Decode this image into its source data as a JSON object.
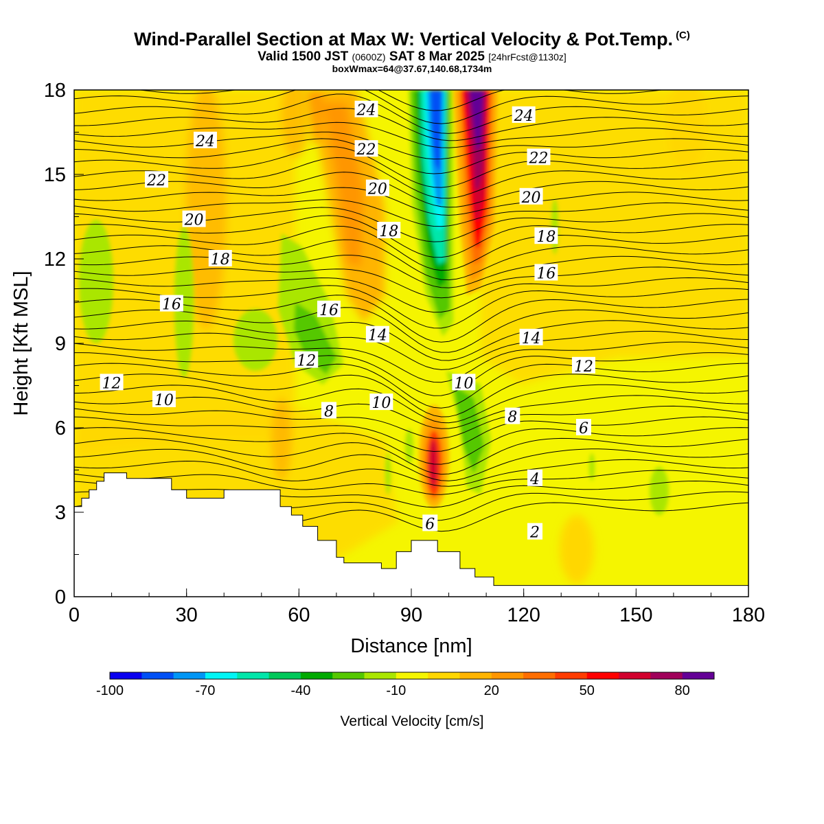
{
  "title": "Wind-Parallel Section at Max W: Vertical Velocity & Pot.Temp.",
  "title_mark": "(C)",
  "subtitle_a": "Valid 1500 JST",
  "subtitle_b": "(0600Z)",
  "subtitle_c": "SAT 8 Mar 2025",
  "subtitle_d": "[24hrFcst@1130z]",
  "subtitle2": "boxWmax=64@37.67,140.68,1734m",
  "chart_data": {
    "type": "heatmap",
    "title": "Wind-Parallel Section at Max W: Vertical Velocity & Pot.Temp.",
    "xlabel": "Distance [nm]",
    "ylabel": "Height [Kft MSL]",
    "xlim": [
      0,
      180
    ],
    "ylim": [
      0,
      18
    ],
    "xticks": [
      "0",
      "30",
      "60",
      "90",
      "120",
      "150",
      "180"
    ],
    "yticks": [
      "0",
      "3",
      "6",
      "9",
      "12",
      "15",
      "18"
    ],
    "colorbar": {
      "label": "Vertical Velocity [cm/s]",
      "tick_labels": [
        "-100",
        "-70",
        "-40",
        "-10",
        "20",
        "50",
        "80"
      ],
      "colors": [
        "#0a00f0",
        "#0050f5",
        "#0096f5",
        "#00f5f5",
        "#00e6aa",
        "#00c85a",
        "#00aa00",
        "#55c800",
        "#aae600",
        "#f5f500",
        "#ffd700",
        "#ffb400",
        "#ff9600",
        "#ff6e00",
        "#ff3c00",
        "#ff0000",
        "#d2002d",
        "#a0005a",
        "#640096"
      ]
    },
    "terrain_kft": [
      [
        0,
        3.2
      ],
      [
        2,
        3.2
      ],
      [
        2,
        3.5
      ],
      [
        4,
        3.5
      ],
      [
        4,
        3.8
      ],
      [
        6,
        3.8
      ],
      [
        6,
        4.1
      ],
      [
        8,
        4.1
      ],
      [
        8,
        4.4
      ],
      [
        14,
        4.4
      ],
      [
        14,
        4.2
      ],
      [
        26,
        4.2
      ],
      [
        26,
        3.8
      ],
      [
        30,
        3.8
      ],
      [
        30,
        3.5
      ],
      [
        40,
        3.5
      ],
      [
        40,
        3.8
      ],
      [
        55,
        3.8
      ],
      [
        55,
        3.2
      ],
      [
        58,
        3.2
      ],
      [
        58,
        2.9
      ],
      [
        61,
        2.9
      ],
      [
        61,
        2.5
      ],
      [
        65,
        2.5
      ],
      [
        65,
        2.0
      ],
      [
        70,
        2.0
      ],
      [
        70,
        1.4
      ],
      [
        72,
        1.4
      ],
      [
        72,
        1.2
      ],
      [
        82,
        1.2
      ],
      [
        82,
        1.0
      ],
      [
        86,
        1.0
      ],
      [
        86,
        1.6
      ],
      [
        90,
        1.6
      ],
      [
        90,
        2.0
      ],
      [
        97,
        2.0
      ],
      [
        97,
        1.6
      ],
      [
        103,
        1.6
      ],
      [
        103,
        1.0
      ],
      [
        107,
        1.0
      ],
      [
        107,
        0.7
      ],
      [
        112,
        0.7
      ],
      [
        112,
        0.4
      ],
      [
        180,
        0.4
      ]
    ],
    "theta_contour_labels": [
      {
        "text": "24",
        "x": 35,
        "y": 16.2
      },
      {
        "text": "22",
        "x": 22,
        "y": 14.8
      },
      {
        "text": "20",
        "x": 32,
        "y": 13.4
      },
      {
        "text": "18",
        "x": 39,
        "y": 12.0
      },
      {
        "text": "16",
        "x": 26,
        "y": 10.4
      },
      {
        "text": "12",
        "x": 10,
        "y": 7.6
      },
      {
        "text": "10",
        "x": 24,
        "y": 7.0
      },
      {
        "text": "24",
        "x": 78,
        "y": 17.3
      },
      {
        "text": "22",
        "x": 78,
        "y": 15.9
      },
      {
        "text": "20",
        "x": 81,
        "y": 14.5
      },
      {
        "text": "18",
        "x": 84,
        "y": 13.0
      },
      {
        "text": "16",
        "x": 68,
        "y": 10.2
      },
      {
        "text": "14",
        "x": 81,
        "y": 9.3
      },
      {
        "text": "12",
        "x": 62,
        "y": 8.4
      },
      {
        "text": "10",
        "x": 82,
        "y": 6.9
      },
      {
        "text": "8",
        "x": 68,
        "y": 6.6
      },
      {
        "text": "24",
        "x": 120,
        "y": 17.1
      },
      {
        "text": "22",
        "x": 124,
        "y": 15.6
      },
      {
        "text": "20",
        "x": 122,
        "y": 14.2
      },
      {
        "text": "18",
        "x": 126,
        "y": 12.8
      },
      {
        "text": "16",
        "x": 126,
        "y": 11.5
      },
      {
        "text": "14",
        "x": 122,
        "y": 9.2
      },
      {
        "text": "12",
        "x": 136,
        "y": 8.2
      },
      {
        "text": "10",
        "x": 104,
        "y": 7.6
      },
      {
        "text": "8",
        "x": 117,
        "y": 6.4
      },
      {
        "text": "6",
        "x": 136,
        "y": 6.0
      },
      {
        "text": "4",
        "x": 123,
        "y": 4.2
      },
      {
        "text": "2",
        "x": 123,
        "y": 2.3
      },
      {
        "text": "6",
        "x": 95,
        "y": 2.6
      }
    ]
  }
}
